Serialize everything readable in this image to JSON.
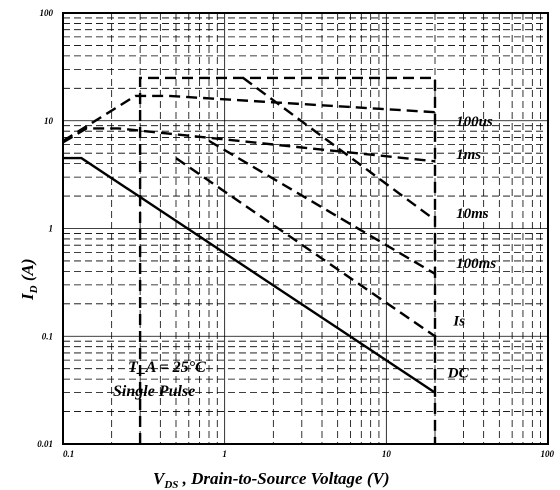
{
  "chart_data": {
    "type": "line",
    "x_scale": "log",
    "y_scale": "log",
    "xlim": [
      0.1,
      100
    ],
    "ylim": [
      0.01,
      100
    ],
    "grid": true,
    "x_ticks": [
      {
        "value": 0.1,
        "label": "0.1"
      },
      {
        "value": 1,
        "label": "1"
      },
      {
        "value": 10,
        "label": "10"
      },
      {
        "value": 100,
        "label": "100"
      }
    ],
    "y_ticks": [
      {
        "value": 0.01,
        "label": "0.01"
      },
      {
        "value": 0.1,
        "label": "0.1"
      },
      {
        "value": 1,
        "label": "1"
      },
      {
        "value": 10,
        "label": "10"
      },
      {
        "value": 100,
        "label": "100"
      }
    ],
    "xlabel_main": "V",
    "xlabel_sub": "DS",
    "xlabel_rest": " , Drain-to-Source Voltage (V)",
    "ylabel_main": "I",
    "ylabel_sub": "D",
    "ylabel_rest": " (A)",
    "annotation_line1": "T_A = 25°C",
    "annotation_line2": "Single Pulse",
    "boundary": {
      "style": "dashed",
      "points": [
        [
          0.3,
          0.01
        ],
        [
          0.3,
          25
        ],
        [
          20,
          25
        ],
        [
          20,
          0.01
        ]
      ]
    },
    "series": [
      {
        "name": "100us",
        "style": "dashed",
        "points": [
          [
            0.1,
            6.5
          ],
          [
            0.28,
            17
          ],
          [
            0.45,
            17
          ],
          [
            20,
            12
          ]
        ]
      },
      {
        "name": "1ms",
        "style": "dashed",
        "points": [
          [
            0.1,
            6.3
          ],
          [
            0.14,
            8.5
          ],
          [
            0.22,
            8.5
          ],
          [
            20,
            4.2
          ]
        ]
      },
      {
        "name": "10ms",
        "style": "dashed",
        "points": [
          [
            1.3,
            25
          ],
          [
            20,
            1.2
          ]
        ]
      },
      {
        "name": "100ms",
        "style": "dashed",
        "points": [
          [
            0.8,
            6.5
          ],
          [
            20,
            0.38
          ]
        ]
      },
      {
        "name": "1s",
        "style": "dashed",
        "points": [
          [
            0.5,
            4.5
          ],
          [
            20,
            0.1
          ]
        ]
      },
      {
        "name": "DC",
        "style": "solid",
        "points": [
          [
            0.1,
            4.5
          ],
          [
            0.13,
            4.5
          ],
          [
            20,
            0.03
          ]
        ]
      }
    ],
    "curve_labels": [
      {
        "text": "100us",
        "at": [
          27,
          10
        ]
      },
      {
        "text": "1ms",
        "at": [
          27,
          4.9
        ]
      },
      {
        "text": "10ms",
        "at": [
          27,
          1.4
        ]
      },
      {
        "text": "100ms",
        "at": [
          27,
          0.48
        ]
      },
      {
        "text": "Is",
        "at": [
          26,
          0.14
        ]
      },
      {
        "text": "DC",
        "at": [
          24,
          0.046
        ]
      }
    ]
  }
}
